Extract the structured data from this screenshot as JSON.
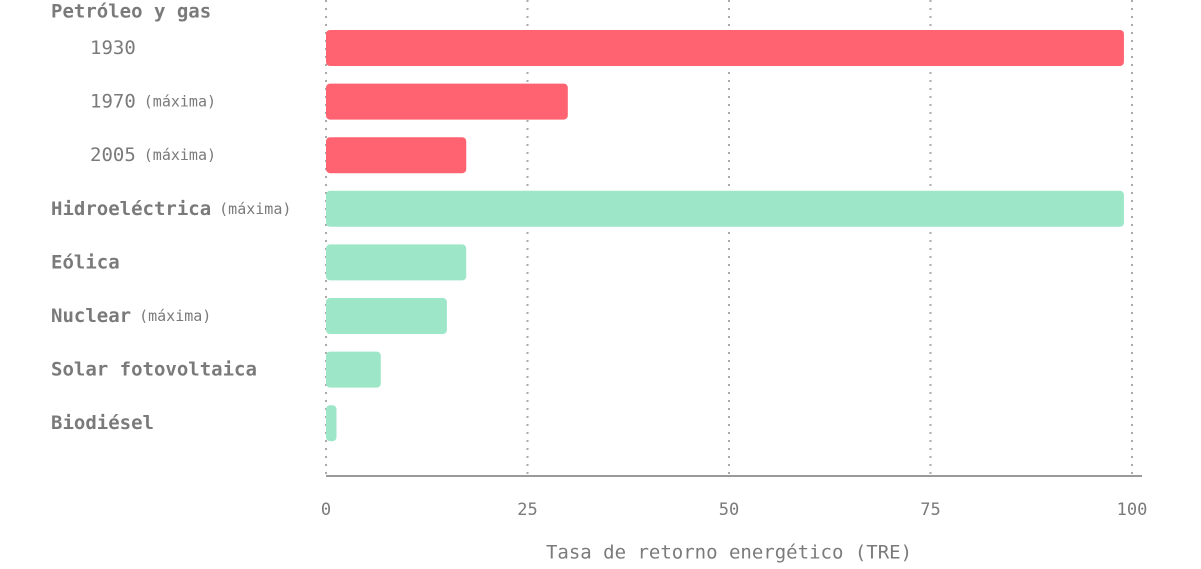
{
  "chart_data": {
    "type": "bar",
    "orientation": "horizontal",
    "series": [
      {
        "name": "Petróleo y gas",
        "color": "#ff6371",
        "categories": [
          "1930",
          "1970",
          "2005"
        ],
        "notes": [
          null,
          "(máxima)",
          "(máxima)"
        ],
        "values": [
          99,
          30,
          17.4
        ]
      },
      {
        "color": "#9de6c8",
        "categories": [
          "Hidroeléctrica",
          "Eólica",
          "Nuclear",
          "Solar fotovoltaica",
          "Biodiésel"
        ],
        "notes": [
          "(máxima)",
          null,
          "(máxima)",
          null,
          null
        ],
        "values": [
          99,
          17.4,
          15,
          6.8,
          1.3
        ]
      }
    ],
    "xlabel": "Tasa de retorno energético (TRE)",
    "xlim": [
      0,
      100
    ],
    "xticks": [
      0,
      25,
      50,
      75,
      100
    ],
    "grid": true
  }
}
